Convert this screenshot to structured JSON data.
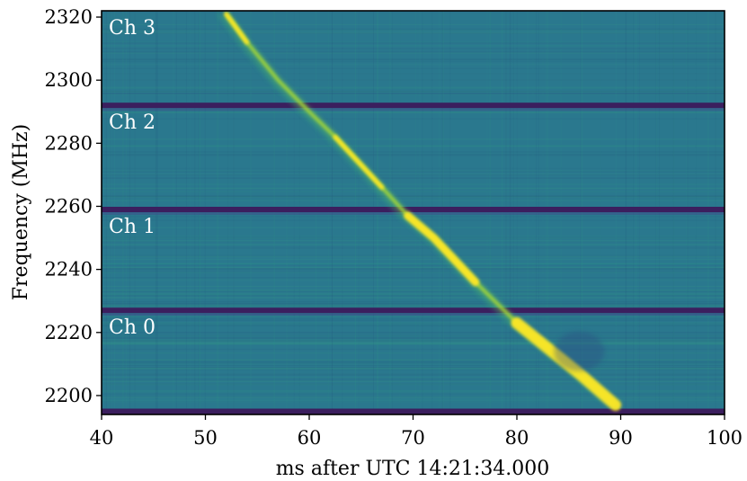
{
  "chart_data": {
    "type": "heatmap",
    "title": "",
    "xlabel": "ms after UTC 14:21:34.000",
    "ylabel": "Frequency (MHz)",
    "xlim": [
      40,
      100
    ],
    "ylim": [
      2194,
      2322
    ],
    "x_ticks": [
      40,
      50,
      60,
      70,
      80,
      90,
      100
    ],
    "y_ticks": [
      2200,
      2220,
      2240,
      2260,
      2280,
      2300,
      2320
    ],
    "colormap": "viridis",
    "colors": {
      "background": "#2a788e",
      "band_gap": "#3b1f5e",
      "burst": "#fde725",
      "trail": "#7ad151"
    },
    "channels": [
      {
        "label": "Ch 0",
        "freq_range": [
          2194,
          2227
        ]
      },
      {
        "label": "Ch 1",
        "freq_range": [
          2227,
          2259
        ]
      },
      {
        "label": "Ch 2",
        "freq_range": [
          2259,
          2292
        ]
      },
      {
        "label": "Ch 3",
        "freq_range": [
          2292,
          2322
        ]
      }
    ],
    "band_gaps_mhz": [
      2195,
      2227,
      2259,
      2292
    ],
    "burst_track": [
      {
        "t_ms": 89.5,
        "freq_mhz": 2197
      },
      {
        "t_ms": 86.0,
        "freq_mhz": 2207
      },
      {
        "t_ms": 83.0,
        "freq_mhz": 2215
      },
      {
        "t_ms": 80.0,
        "freq_mhz": 2223
      },
      {
        "t_ms": 76.0,
        "freq_mhz": 2236
      },
      {
        "t_ms": 72.0,
        "freq_mhz": 2250
      },
      {
        "t_ms": 69.5,
        "freq_mhz": 2257
      },
      {
        "t_ms": 67.0,
        "freq_mhz": 2266
      },
      {
        "t_ms": 62.5,
        "freq_mhz": 2282
      },
      {
        "t_ms": 60.0,
        "freq_mhz": 2290
      },
      {
        "t_ms": 57.0,
        "freq_mhz": 2300
      },
      {
        "t_ms": 54.0,
        "freq_mhz": 2312
      },
      {
        "t_ms": 52.0,
        "freq_mhz": 2321
      }
    ]
  }
}
